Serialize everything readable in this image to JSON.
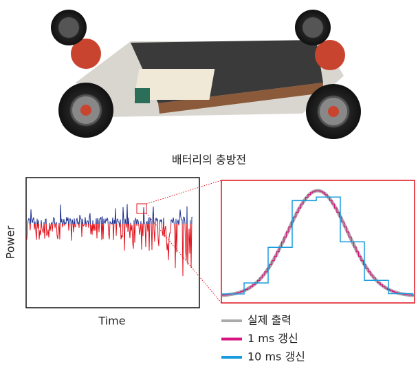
{
  "caption": "배터리의 충방전",
  "chart": {
    "y_label": "Power",
    "x_label": "Time"
  },
  "legend": [
    {
      "label": "실제 출력",
      "color": "#aaaaaa"
    },
    {
      "label": "1 ms 갱신",
      "color": "#d6137f"
    },
    {
      "label": "10 ms 갱신",
      "color": "#1a9be0"
    }
  ]
}
